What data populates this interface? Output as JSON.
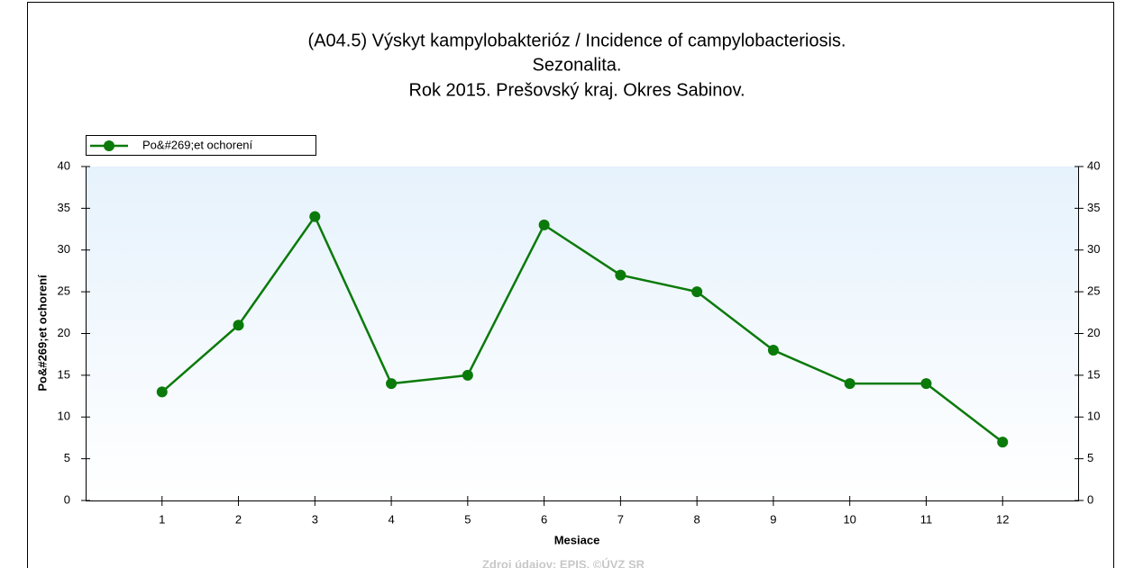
{
  "chart_data": {
    "type": "line",
    "title": [
      "(A04.5) Výskyt kampylobakterióz / Incidence of campylobacteriosis.",
      "Sezonalita.",
      "Rok 2015. Prešovský kraj. Okres Sabinov."
    ],
    "x_label": "Mesiace",
    "y_label": "Po&#269;et ochorení",
    "source": "Zdroj údajov: EPIS, ©ÚVZ SR",
    "legend": "top-left",
    "x": [
      1,
      2,
      3,
      4,
      5,
      6,
      7,
      8,
      9,
      10,
      11,
      12
    ],
    "series": [
      {
        "name": "Po&#269;et ochorení",
        "color": "#0a7a0a",
        "values": [
          13,
          21,
          34,
          14,
          15,
          33,
          27,
          25,
          18,
          14,
          14,
          7
        ]
      }
    ],
    "xlim": [
      0,
      13
    ],
    "xticks": [
      1,
      2,
      3,
      4,
      5,
      6,
      7,
      8,
      9,
      10,
      11,
      12
    ],
    "ylim": [
      0,
      40
    ],
    "yticks": [
      0,
      5,
      10,
      15,
      20,
      25,
      30,
      35,
      40
    ],
    "y2lim": [
      0,
      40
    ],
    "y2ticks": [
      0,
      5,
      10,
      15,
      20,
      25,
      30,
      35,
      40
    ]
  }
}
